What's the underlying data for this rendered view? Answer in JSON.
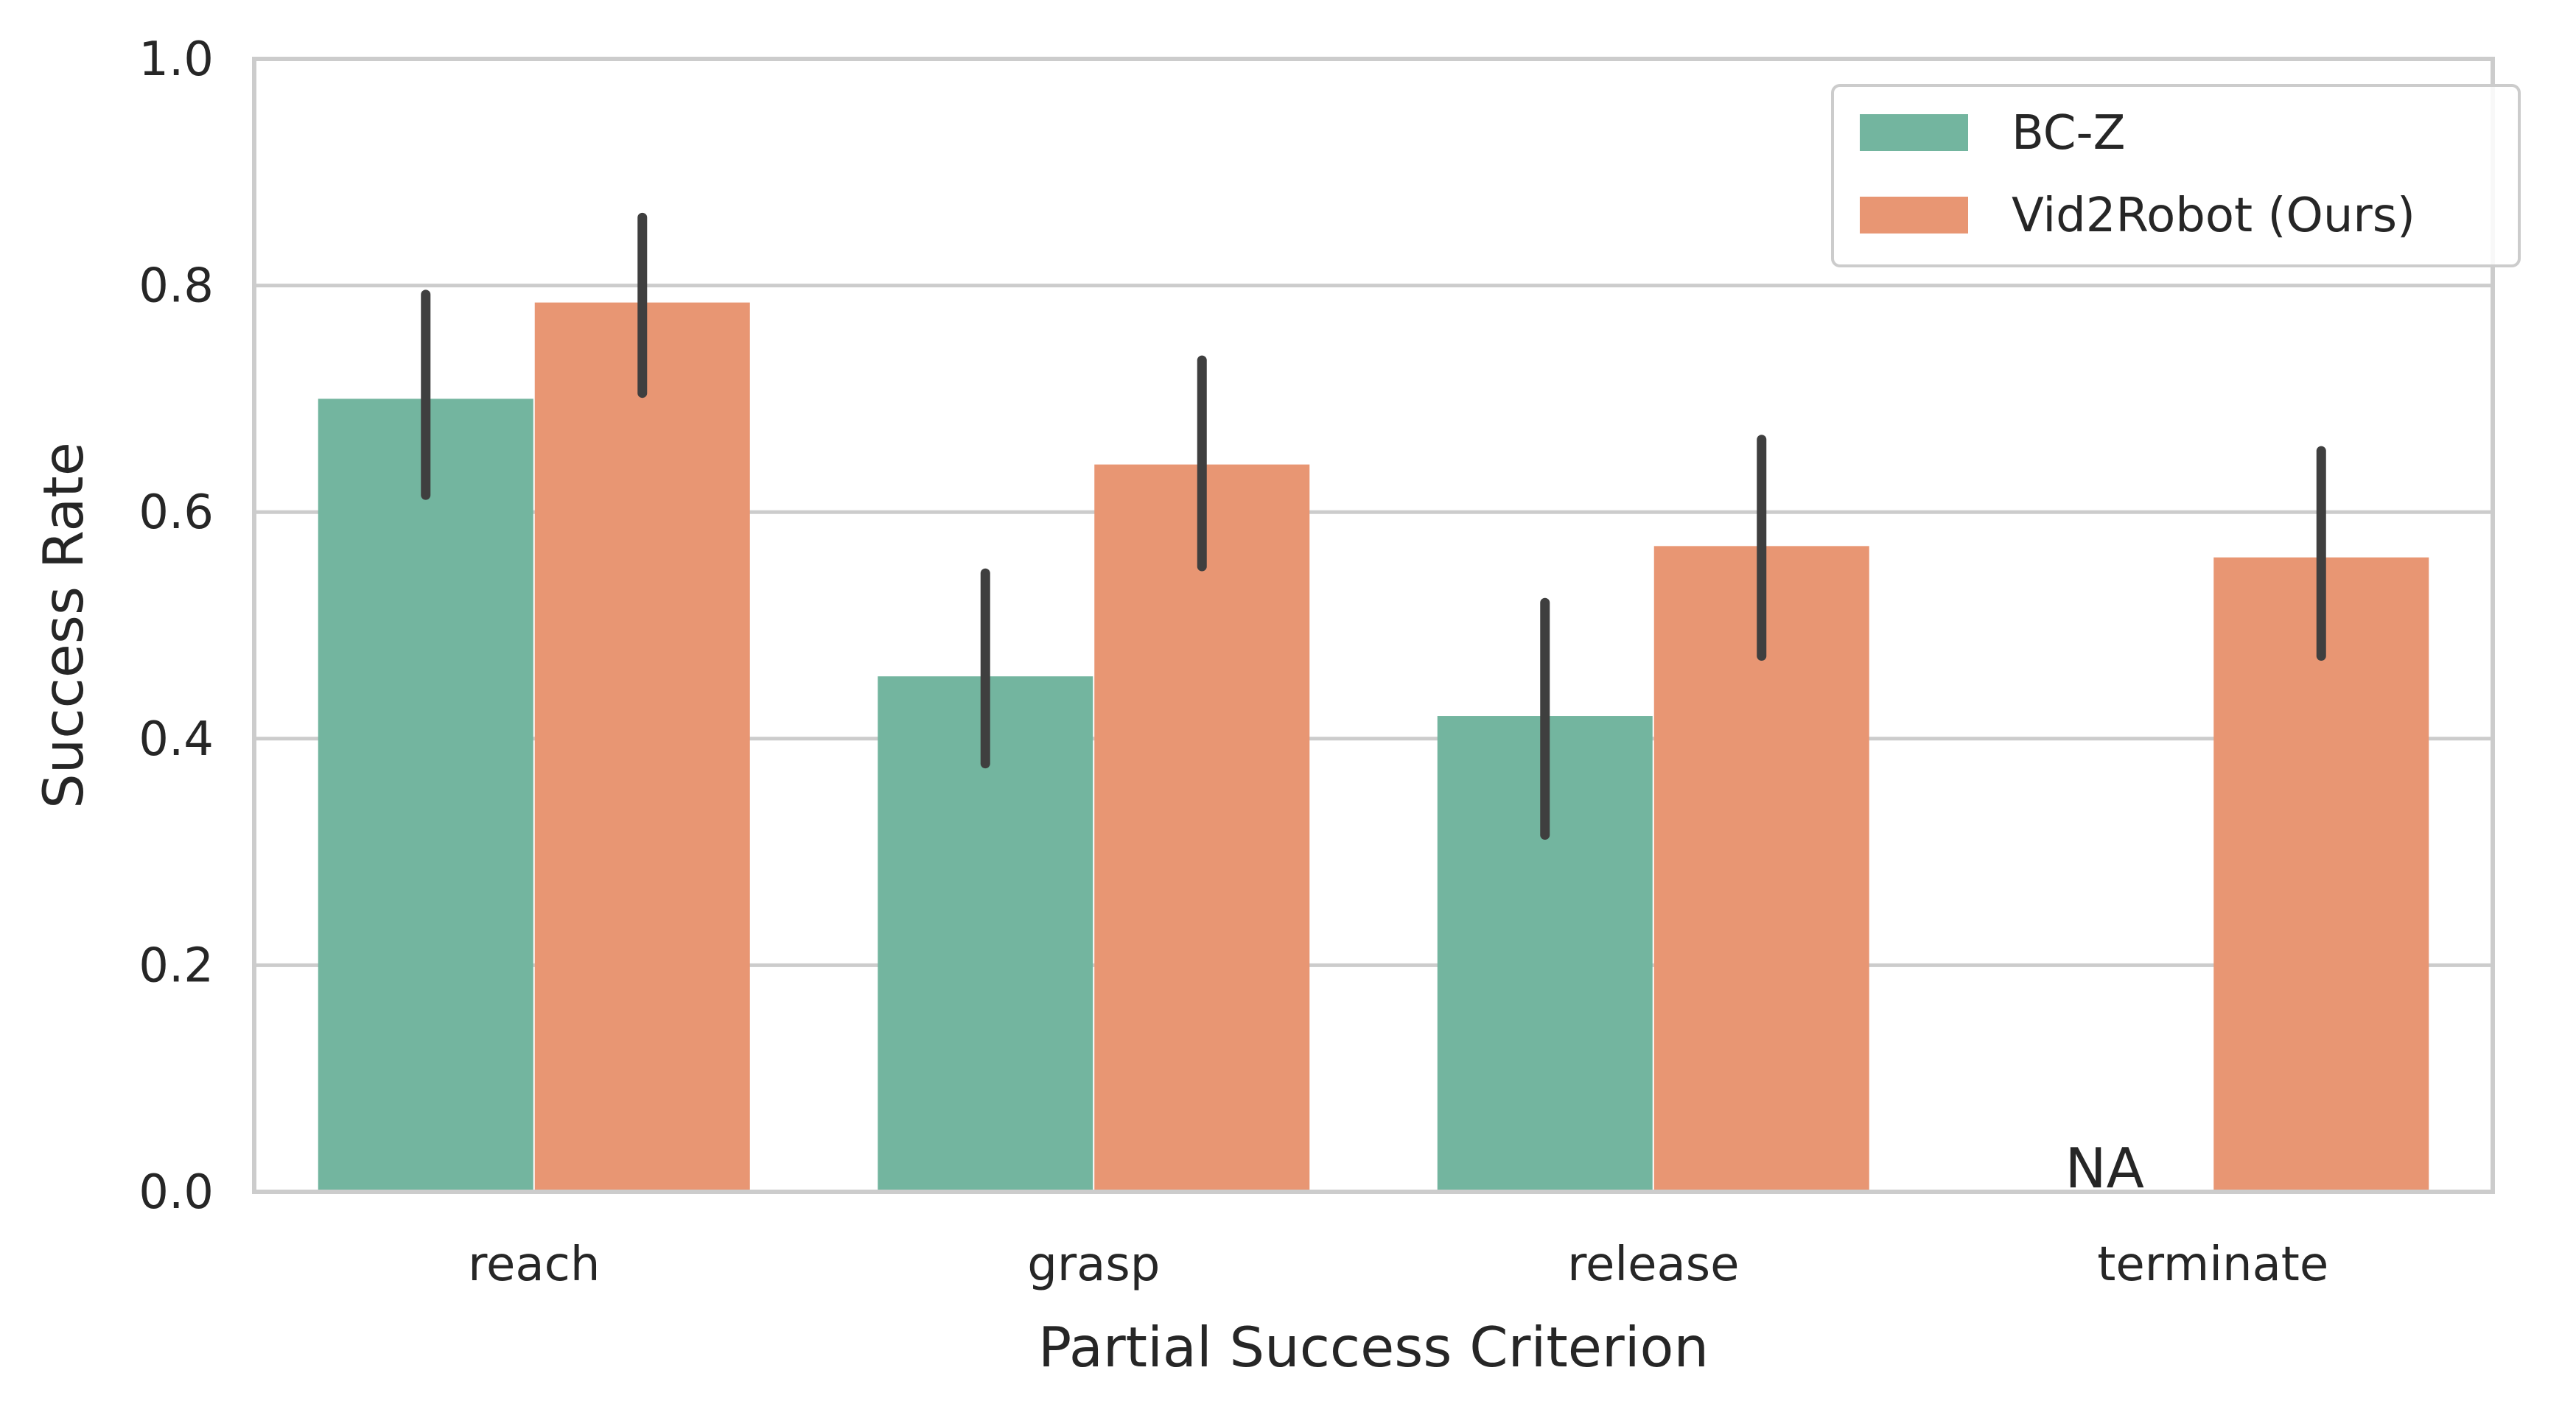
{
  "chart_data": {
    "type": "bar",
    "title": "",
    "xlabel": "Partial Success Criterion",
    "ylabel": "Success Rate",
    "categories": [
      "reach",
      "grasp",
      "release",
      "terminate"
    ],
    "ylim": [
      0,
      1.0
    ],
    "yticks": [
      "0.0",
      "0.2",
      "0.4",
      "0.6",
      "0.8",
      "1.0"
    ],
    "grid": "horizontal",
    "legend_position": "top-right",
    "series": [
      {
        "name": "BC-Z",
        "color": "#73b59f",
        "values": [
          0.7,
          0.455,
          0.42,
          null
        ],
        "error_low": [
          0.615,
          0.378,
          0.315,
          null
        ],
        "error_high": [
          0.792,
          0.546,
          0.52,
          null
        ]
      },
      {
        "name": "Vid2Robot (Ours)",
        "color": "#e89673",
        "values": [
          0.785,
          0.642,
          0.57,
          0.56
        ],
        "error_low": [
          0.705,
          0.552,
          0.473,
          0.473
        ],
        "error_high": [
          0.86,
          0.734,
          0.664,
          0.654
        ]
      }
    ],
    "annotations": [
      {
        "category": "terminate",
        "series": "BC-Z",
        "text": "NA"
      }
    ]
  }
}
